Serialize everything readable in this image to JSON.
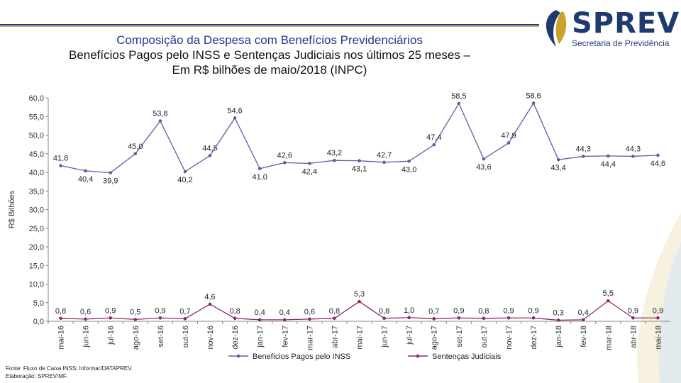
{
  "header": {
    "title_line1": "Composição da Despesa com Benefícios Previdenciários",
    "title_line2": "Benefícios Pagos pelo INSS e Sentenças Judiciais nos últimos 25 meses –",
    "title_line3": "Em R$ bilhões de maio/2018 (INPC)"
  },
  "logo": {
    "name": "SPREV",
    "subtitle": "Secretaria de Previdência",
    "colors": {
      "primary": "#1f3a6e",
      "accent": "#c9a227"
    }
  },
  "footnote": {
    "source": "Fonte: Fluxo de Caixa INSS; Informar/DATAPREV.",
    "credit": "Elaboração: SPREV/MF."
  },
  "chart_data": {
    "type": "line",
    "title": "",
    "xlabel": "",
    "ylabel": "R$ Bilhões",
    "ylim": [
      0,
      60
    ],
    "yticks": [
      "0,0",
      "5,0",
      "10,0",
      "15,0",
      "20,0",
      "25,0",
      "30,0",
      "35,0",
      "40,0",
      "45,0",
      "50,0",
      "55,0",
      "60,0"
    ],
    "grid": false,
    "legend": "bottom",
    "categories": [
      "mai-16",
      "jun-16",
      "jul-16",
      "ago-16",
      "set-16",
      "out-16",
      "nov-16",
      "dez-16",
      "jan-17",
      "fev-17",
      "mar-17",
      "abr-17",
      "mai-17",
      "jun-17",
      "jul-17",
      "ago-17",
      "set-17",
      "out-17",
      "nov-17",
      "dez-17",
      "jan-18",
      "fev-18",
      "mar-18",
      "abr-18",
      "mai-18"
    ],
    "series": [
      {
        "name": "Benefícios Pagos pelo INSS",
        "color": "#5b5fa6",
        "values": [
          41.8,
          40.4,
          39.9,
          45.0,
          53.8,
          40.2,
          44.5,
          54.6,
          41.0,
          42.6,
          42.4,
          43.2,
          43.1,
          42.7,
          43.0,
          47.4,
          58.5,
          43.6,
          47.9,
          58.6,
          43.4,
          44.3,
          44.4,
          44.3,
          44.6
        ],
        "labels": [
          "41,8",
          "40,4",
          "39,9",
          "45,0",
          "53,8",
          "40,2",
          "44,5",
          "54,6",
          "41,0",
          "42,6",
          "42,4",
          "43,2",
          "43,1",
          "42,7",
          "43,0",
          "47,4",
          "58,5",
          "43,6",
          "47,9",
          "58,6",
          "43,4",
          "44,3",
          "44,4",
          "44,3",
          "44,6"
        ],
        "label_pos": [
          "above",
          "below",
          "below",
          "above",
          "above",
          "below",
          "above",
          "above",
          "below",
          "above",
          "below",
          "above",
          "below",
          "above",
          "below",
          "above",
          "above",
          "below",
          "above",
          "above",
          "below",
          "above",
          "below",
          "above",
          "below"
        ]
      },
      {
        "name": "Sentenças Judiciais",
        "color": "#8a2a6e",
        "values": [
          0.8,
          0.6,
          0.9,
          0.5,
          0.9,
          0.7,
          4.6,
          0.8,
          0.4,
          0.4,
          0.6,
          0.8,
          5.3,
          0.8,
          1.0,
          0.7,
          0.9,
          0.8,
          0.9,
          0.9,
          0.3,
          0.4,
          5.5,
          0.9,
          0.9
        ],
        "labels": [
          "0,8",
          "0,6",
          "0,9",
          "0,5",
          "0,9",
          "0,7",
          "4,6",
          "0,8",
          "0,4",
          "0,4",
          "0,6",
          "0,8",
          "5,3",
          "0,8",
          "1,0",
          "0,7",
          "0,9",
          "0,8",
          "0,9",
          "0,9",
          "0,3",
          "0,4",
          "5,5",
          "0,9",
          "0,9"
        ]
      }
    ]
  }
}
